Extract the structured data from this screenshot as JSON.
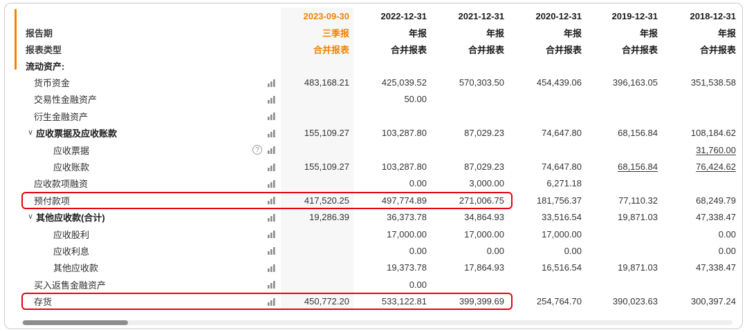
{
  "header": {
    "row_labels": [
      "报告期",
      "报表类型"
    ],
    "columns": [
      {
        "date": "2023-09-30",
        "period": "三季报",
        "report_type": "合并报表",
        "highlighted": true
      },
      {
        "date": "2022-12-31",
        "period": "年报",
        "report_type": "合并报表",
        "highlighted": false
      },
      {
        "date": "2021-12-31",
        "period": "年报",
        "report_type": "合并报表",
        "highlighted": false
      },
      {
        "date": "2020-12-31",
        "period": "年报",
        "report_type": "合并报表",
        "highlighted": false
      },
      {
        "date": "2019-12-31",
        "period": "年报",
        "report_type": "合并报表",
        "highlighted": false
      },
      {
        "date": "2018-12-31",
        "period": "年报",
        "report_type": "合并报表",
        "highlighted": false
      }
    ]
  },
  "colors": {
    "accent_orange": "#f08300",
    "highlight_red": "#e60012",
    "first_column_bg": "#f7f7f7"
  },
  "rows": [
    {
      "label": "流动资产:",
      "level": 0,
      "section": true,
      "values": [
        "",
        "",
        "",
        "",
        "",
        ""
      ]
    },
    {
      "label": "货币资金",
      "level": 1,
      "values": [
        "483,168.21",
        "425,039.52",
        "570,303.50",
        "454,439.06",
        "396,163.05",
        "351,538.58"
      ]
    },
    {
      "label": "交易性金融资产",
      "level": 1,
      "values": [
        "",
        "50.00",
        "",
        "",
        "",
        ""
      ]
    },
    {
      "label": "衍生金融资产",
      "level": 1,
      "values": [
        "",
        "",
        "",
        "",
        "",
        ""
      ]
    },
    {
      "label": "应收票据及应收账款",
      "level": 1,
      "group": true,
      "values": [
        "155,109.27",
        "103,287.80",
        "87,029.23",
        "74,647.80",
        "68,156.84",
        "108,184.62"
      ]
    },
    {
      "label": "应收票据",
      "level": 2,
      "help": true,
      "values": [
        "",
        "",
        "",
        "",
        "",
        "31,760.00"
      ],
      "underline": [
        5
      ]
    },
    {
      "label": "应收账款",
      "level": 2,
      "values": [
        "155,109.27",
        "103,287.80",
        "87,029.23",
        "74,647.80",
        "68,156.84",
        "76,424.62"
      ],
      "underline": [
        4,
        5
      ]
    },
    {
      "label": "应收款项融资",
      "level": 1,
      "values": [
        "",
        "0.00",
        "3,000.00",
        "6,271.18",
        "",
        ""
      ]
    },
    {
      "label": "预付款项",
      "level": 1,
      "highlight": true,
      "values": [
        "417,520.25",
        "497,774.89",
        "271,006.75",
        "181,756.37",
        "77,110.32",
        "68,249.79"
      ]
    },
    {
      "label": "其他应收款(合计)",
      "level": 1,
      "group": true,
      "values": [
        "19,286.39",
        "36,373.78",
        "34,864.93",
        "33,516.54",
        "19,871.03",
        "47,338.47"
      ]
    },
    {
      "label": "应收股利",
      "level": 2,
      "values": [
        "",
        "17,000.00",
        "17,000.00",
        "17,000.00",
        "",
        "0.00"
      ]
    },
    {
      "label": "应收利息",
      "level": 2,
      "values": [
        "",
        "0.00",
        "0.00",
        "0.00",
        "",
        "0.00"
      ]
    },
    {
      "label": "其他应收款",
      "level": 2,
      "values": [
        "",
        "19,373.78",
        "17,864.93",
        "16,516.54",
        "19,871.03",
        "47,338.47"
      ]
    },
    {
      "label": "买入返售金融资产",
      "level": 1,
      "values": [
        "",
        "0.00",
        "",
        "",
        "",
        ""
      ]
    },
    {
      "label": "存货",
      "level": 1,
      "highlight": true,
      "values": [
        "450,772.20",
        "533,122.81",
        "399,399.69",
        "254,764.70",
        "390,023.63",
        "300,397.24"
      ]
    }
  ]
}
